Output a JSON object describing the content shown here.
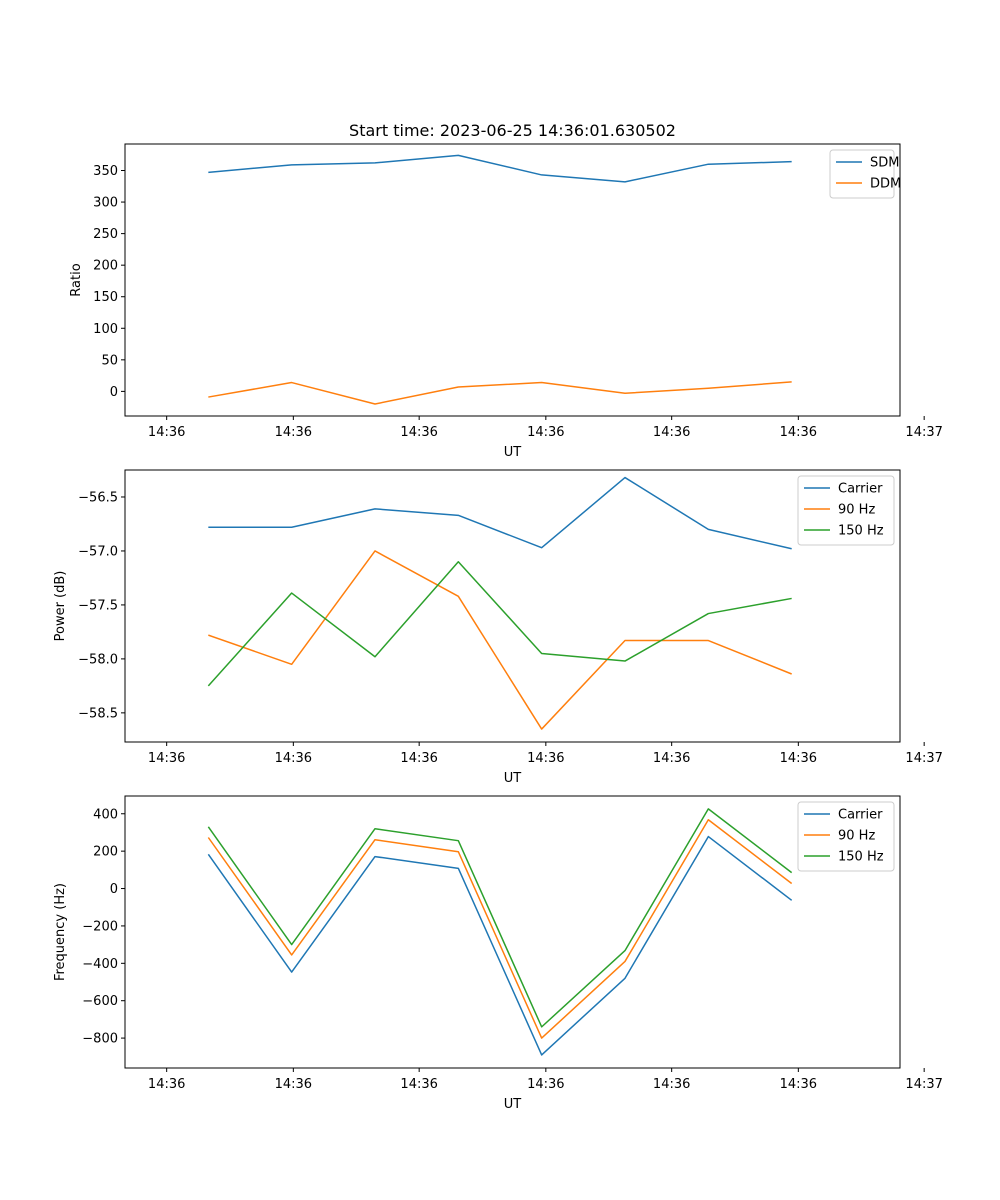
{
  "chart_data": [
    {
      "type": "line",
      "title": "Start time: 2023-06-25 14:36:01.630502",
      "xlabel": "UT",
      "ylabel": "Ratio",
      "xlim": [
        -0.5,
        8.8
      ],
      "ylim": [
        -39,
        392
      ],
      "x": [
        0.5,
        1.5,
        2.5,
        3.5,
        4.5,
        5.5,
        6.5,
        7.5
      ],
      "xticks": [
        0.0,
        1.52,
        3.03,
        4.55,
        6.06,
        7.58,
        9.09
      ],
      "xtick_labels": [
        "14:36",
        "14:36",
        "14:36",
        "14:36",
        "14:36",
        "14:36",
        "14:37"
      ],
      "yticks": [
        0,
        50,
        100,
        150,
        200,
        250,
        300,
        350
      ],
      "ytick_labels": [
        "0",
        "50",
        "100",
        "150",
        "200",
        "250",
        "300",
        "350"
      ],
      "legend": "top-right",
      "grid": false,
      "series": [
        {
          "name": "SDM",
          "color": "#1f77b4",
          "values": [
            347,
            359,
            362,
            374,
            343,
            332,
            360,
            364
          ]
        },
        {
          "name": "DDM",
          "color": "#ff7f0e",
          "values": [
            -9,
            14,
            -20,
            7,
            14,
            -3,
            5,
            15
          ]
        }
      ]
    },
    {
      "type": "line",
      "title": "",
      "xlabel": "UT",
      "ylabel": "Power (dB)",
      "xlim": [
        -0.5,
        8.8
      ],
      "ylim": [
        -58.77,
        -56.25
      ],
      "x": [
        0.5,
        1.5,
        2.5,
        3.5,
        4.5,
        5.5,
        6.5,
        7.5
      ],
      "xticks": [
        0.0,
        1.52,
        3.03,
        4.55,
        6.06,
        7.58,
        9.09
      ],
      "xtick_labels": [
        "14:36",
        "14:36",
        "14:36",
        "14:36",
        "14:36",
        "14:36",
        "14:37"
      ],
      "yticks": [
        -58.5,
        -58.0,
        -57.5,
        -57.0,
        -56.5
      ],
      "ytick_labels": [
        "−58.5",
        "−58.0",
        "−57.5",
        "−57.0",
        "−56.5"
      ],
      "legend": "top-right",
      "grid": false,
      "series": [
        {
          "name": "Carrier",
          "color": "#1f77b4",
          "values": [
            -56.78,
            -56.78,
            -56.61,
            -56.67,
            -56.97,
            -56.32,
            -56.8,
            -56.98
          ]
        },
        {
          "name": "90 Hz",
          "color": "#ff7f0e",
          "values": [
            -57.78,
            -58.05,
            -57.0,
            -57.42,
            -58.65,
            -57.83,
            -57.83,
            -58.14
          ]
        },
        {
          "name": "150 Hz",
          "color": "#2ca02c",
          "values": [
            -58.25,
            -57.39,
            -57.98,
            -57.1,
            -57.95,
            -58.02,
            -57.58,
            -57.44
          ]
        }
      ]
    },
    {
      "type": "line",
      "title": "",
      "xlabel": "UT",
      "ylabel": "Frequency (Hz)",
      "xlim": [
        -0.5,
        8.8
      ],
      "ylim": [
        -960,
        495
      ],
      "x": [
        0.5,
        1.5,
        2.5,
        3.5,
        4.5,
        5.5,
        6.5,
        7.5
      ],
      "xticks": [
        0.0,
        1.52,
        3.03,
        4.55,
        6.06,
        7.58,
        9.09
      ],
      "xtick_labels": [
        "14:36",
        "14:36",
        "14:36",
        "14:36",
        "14:36",
        "14:36",
        "14:37"
      ],
      "yticks": [
        -800,
        -600,
        -400,
        -200,
        0,
        200,
        400
      ],
      "ytick_labels": [
        "−800",
        "−600",
        "−400",
        "−200",
        "0",
        "200",
        "400"
      ],
      "legend": "top-right",
      "grid": false,
      "series": [
        {
          "name": "Carrier",
          "color": "#1f77b4",
          "values": [
            183,
            -447,
            171,
            108,
            -890,
            -480,
            278,
            -63
          ]
        },
        {
          "name": "90 Hz",
          "color": "#ff7f0e",
          "values": [
            273,
            -355,
            261,
            197,
            -800,
            -390,
            368,
            27
          ]
        },
        {
          "name": "150 Hz",
          "color": "#2ca02c",
          "values": [
            330,
            -300,
            320,
            256,
            -740,
            -332,
            426,
            85
          ]
        }
      ]
    }
  ]
}
